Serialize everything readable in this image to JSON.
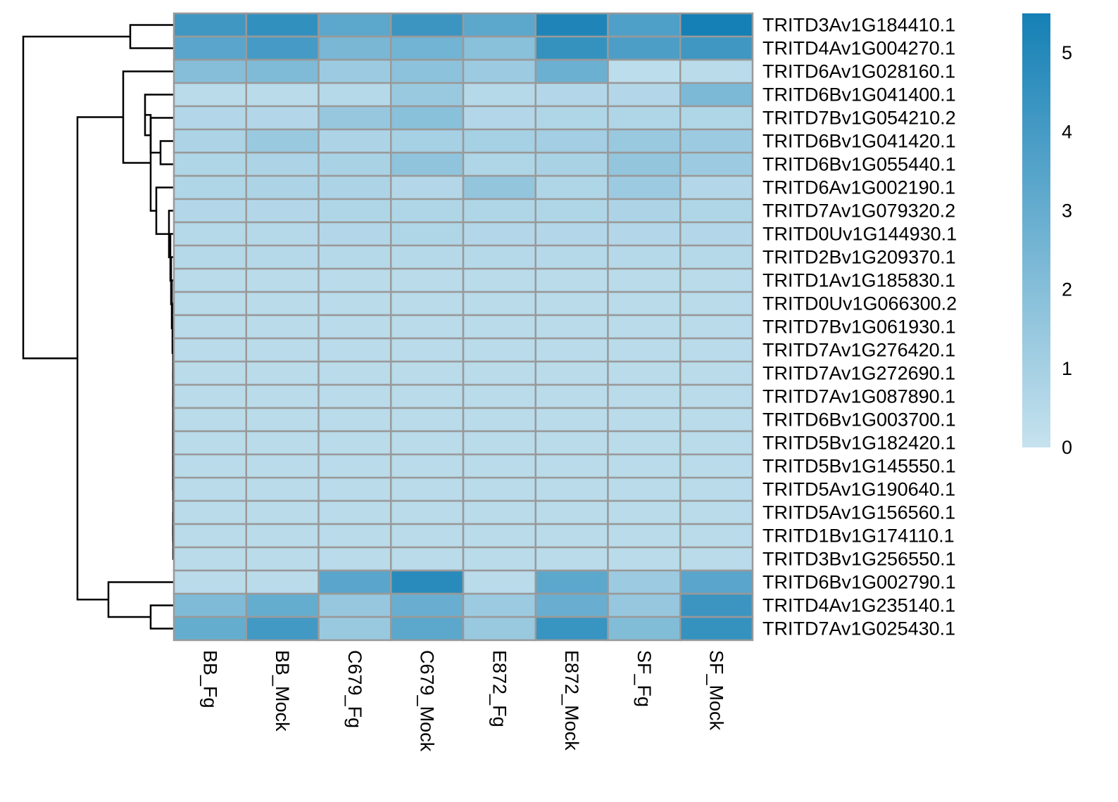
{
  "chart_data": {
    "type": "heatmap",
    "columns": [
      "BB_Fg",
      "BB_Mock",
      "C679_Fg",
      "C679_Mock",
      "E872_Fg",
      "E872_Mock",
      "SF_Fg",
      "SF_Mock"
    ],
    "rows": [
      "TRITD3Av1G184410.1",
      "TRITD4Av1G004270.1",
      "TRITD6Av1G028160.1",
      "TRITD6Bv1G041400.1",
      "TRITD7Bv1G054210.2",
      "TRITD6Bv1G041420.1",
      "TRITD6Bv1G055440.1",
      "TRITD6Av1G002190.1",
      "TRITD7Av1G079320.2",
      "TRITD0Uv1G144930.1",
      "TRITD2Bv1G209370.1",
      "TRITD1Av1G185830.1",
      "TRITD0Uv1G066300.2",
      "TRITD7Bv1G061930.1",
      "TRITD7Av1G276420.1",
      "TRITD7Av1G272690.1",
      "TRITD7Av1G087890.1",
      "TRITD6Bv1G003700.1",
      "TRITD5Bv1G182420.1",
      "TRITD5Bv1G145550.1",
      "TRITD5Av1G190640.1",
      "TRITD5Av1G156560.1",
      "TRITD1Bv1G174110.1",
      "TRITD3Bv1G256550.1",
      "TRITD6Bv1G002790.1",
      "TRITD4Av1G235140.1",
      "TRITD7Av1G025430.1"
    ],
    "values": [
      [
        4.2,
        4.6,
        3.3,
        4.3,
        3.3,
        5.2,
        3.7,
        5.5
      ],
      [
        3.4,
        4.0,
        2.4,
        2.6,
        1.9,
        4.5,
        3.8,
        4.2
      ],
      [
        2.0,
        2.2,
        1.3,
        1.8,
        1.3,
        2.8,
        0.3,
        0.4
      ],
      [
        0.4,
        0.4,
        0.5,
        1.4,
        0.5,
        0.6,
        0.6,
        2.3
      ],
      [
        0.6,
        0.6,
        1.5,
        1.9,
        0.6,
        0.7,
        0.7,
        0.7
      ],
      [
        0.8,
        1.4,
        0.8,
        1.0,
        1.0,
        1.1,
        1.4,
        1.3
      ],
      [
        0.7,
        0.8,
        0.9,
        1.7,
        0.7,
        0.9,
        1.6,
        1.3
      ],
      [
        0.7,
        0.8,
        0.8,
        0.6,
        1.6,
        0.7,
        1.3,
        0.6
      ],
      [
        0.6,
        0.6,
        0.7,
        0.7,
        0.7,
        0.7,
        0.8,
        0.7
      ],
      [
        0.5,
        0.5,
        0.6,
        0.7,
        0.6,
        0.6,
        0.6,
        0.6
      ],
      [
        0.5,
        0.5,
        0.5,
        0.5,
        0.5,
        0.5,
        0.5,
        0.5
      ],
      [
        0.4,
        0.4,
        0.4,
        0.4,
        0.4,
        0.4,
        0.4,
        0.4
      ],
      [
        0.4,
        0.4,
        0.4,
        0.4,
        0.4,
        0.4,
        0.4,
        0.4
      ],
      [
        0.4,
        0.4,
        0.4,
        0.4,
        0.4,
        0.4,
        0.4,
        0.4
      ],
      [
        0.4,
        0.4,
        0.4,
        0.4,
        0.4,
        0.4,
        0.4,
        0.4
      ],
      [
        0.4,
        0.4,
        0.4,
        0.4,
        0.4,
        0.4,
        0.4,
        0.4
      ],
      [
        0.4,
        0.4,
        0.4,
        0.4,
        0.4,
        0.4,
        0.4,
        0.4
      ],
      [
        0.4,
        0.4,
        0.4,
        0.4,
        0.4,
        0.4,
        0.4,
        0.4
      ],
      [
        0.4,
        0.4,
        0.4,
        0.4,
        0.4,
        0.4,
        0.4,
        0.4
      ],
      [
        0.4,
        0.4,
        0.4,
        0.4,
        0.4,
        0.4,
        0.4,
        0.4
      ],
      [
        0.4,
        0.4,
        0.4,
        0.4,
        0.4,
        0.4,
        0.4,
        0.4
      ],
      [
        0.4,
        0.4,
        0.4,
        0.4,
        0.4,
        0.4,
        0.4,
        0.4
      ],
      [
        0.4,
        0.4,
        0.4,
        0.4,
        0.4,
        0.4,
        0.4,
        0.4
      ],
      [
        0.4,
        0.4,
        0.4,
        0.4,
        0.4,
        0.4,
        0.4,
        0.4
      ],
      [
        0.4,
        0.4,
        3.4,
        4.9,
        0.4,
        3.3,
        1.3,
        3.4
      ],
      [
        2.2,
        3.0,
        1.5,
        2.9,
        1.3,
        2.9,
        1.5,
        4.3
      ],
      [
        3.0,
        4.1,
        1.4,
        3.3,
        1.4,
        4.4,
        2.1,
        4.5
      ]
    ],
    "value_range": [
      0,
      5.5
    ],
    "colorbar": {
      "ticks": [
        0,
        1,
        2,
        3,
        4,
        5
      ],
      "low_color": "#c6e2ee",
      "high_color": "#1580b5"
    },
    "row_dendrogram_order": "rows are listed in dendrogram leaf order",
    "border_color": "#999999"
  }
}
